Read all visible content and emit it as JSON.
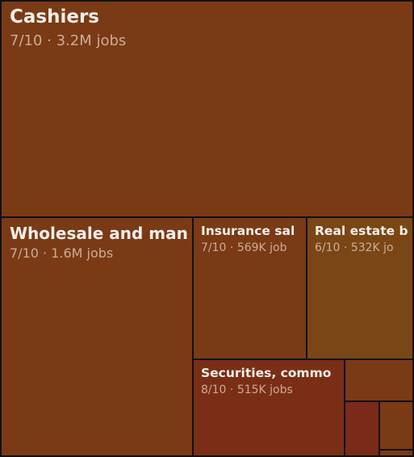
{
  "chart_data": {
    "type": "treemap",
    "items": [
      {
        "name": "Cashiers",
        "score": "7/10",
        "jobs": "3.2M jobs",
        "value": 3200000,
        "color": "#7a3a16"
      },
      {
        "name": "Wholesale and man",
        "score": "7/10",
        "jobs": "1.6M jobs",
        "value": 1600000,
        "color": "#7a3a16"
      },
      {
        "name": "Insurance sal",
        "score": "7/10",
        "jobs": "569K job",
        "value": 569000,
        "color": "#7a3a16"
      },
      {
        "name": "Real estate b",
        "score": "6/10",
        "jobs": "532K jo",
        "value": 532000,
        "color": "#7a4616"
      },
      {
        "name": "Securities, commo",
        "score": "8/10",
        "jobs": "515K jobs",
        "value": 515000,
        "color": "#7a2e16"
      },
      {
        "name": "",
        "score": "",
        "jobs": "",
        "value": 170000,
        "color": "#7a3a16"
      },
      {
        "name": "",
        "score": "",
        "jobs": "",
        "value": 120000,
        "color": "#7a2a18"
      },
      {
        "name": "",
        "score": "",
        "jobs": "",
        "value": 110000,
        "color": "#7a3a16"
      },
      {
        "name": "",
        "score": "",
        "jobs": "",
        "value": 20000,
        "color": "#7a3a16"
      }
    ]
  }
}
